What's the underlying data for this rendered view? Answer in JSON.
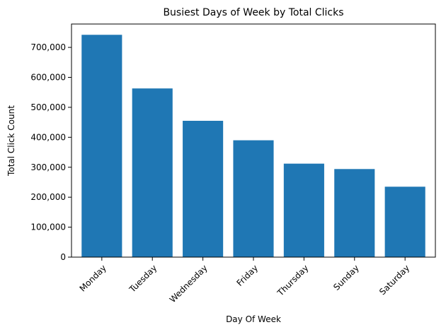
{
  "chart_data": {
    "type": "bar",
    "title": "Busiest Days of Week by Total Clicks",
    "xlabel": "Day Of Week",
    "ylabel": "Total Click Count",
    "categories": [
      "Monday",
      "Tuesday",
      "Wednesday",
      "Friday",
      "Thursday",
      "Sunday",
      "Saturday"
    ],
    "values": [
      742000,
      563000,
      455000,
      390000,
      312000,
      294000,
      235000
    ],
    "ylim": [
      0,
      778000
    ],
    "yticks": [
      0,
      100000,
      200000,
      300000,
      400000,
      500000,
      600000,
      700000
    ],
    "ytick_labels": [
      "0",
      "100,000",
      "200,000",
      "300,000",
      "400,000",
      "500,000",
      "600,000",
      "700,000"
    ],
    "bar_color": "#1f77b4",
    "grid": false,
    "legend": "none"
  }
}
